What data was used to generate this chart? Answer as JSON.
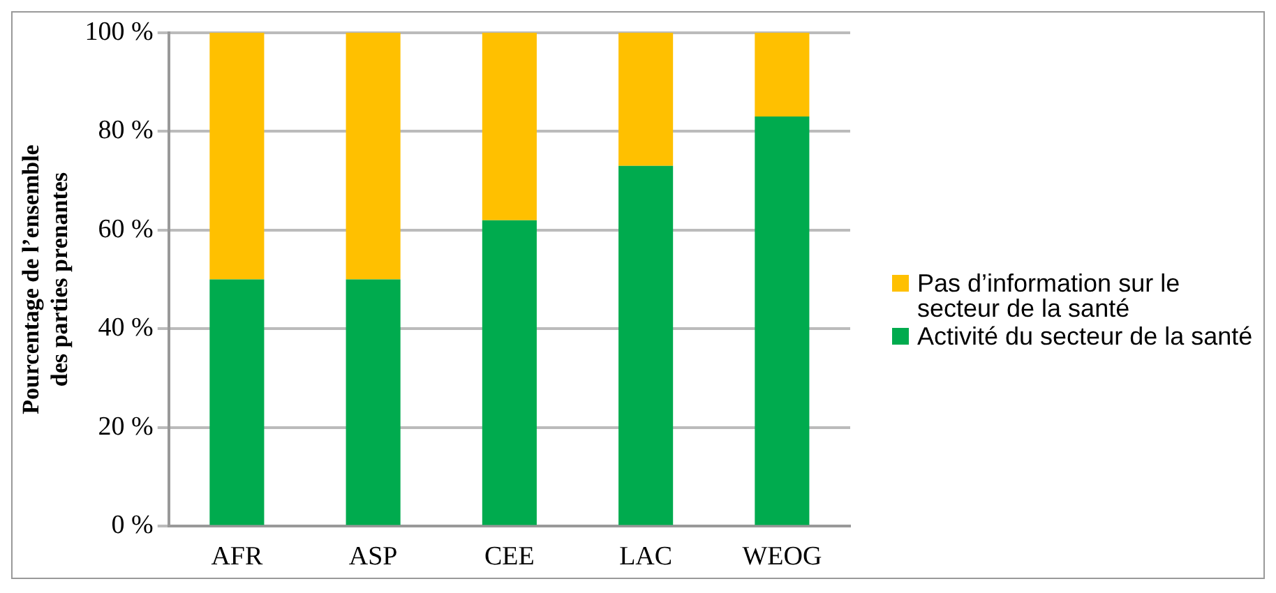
{
  "chart_data": {
    "type": "bar",
    "stacked": true,
    "ylabel": "Pourcentage de l’ensemble des parties prenantes",
    "categories": [
      "AFR",
      "ASP",
      "CEE",
      "LAC",
      "WEOG"
    ],
    "series": [
      {
        "name": "Activité du secteur de la santé",
        "color": "#00ab4e",
        "values": [
          50,
          50,
          62,
          73,
          83
        ]
      },
      {
        "name": "Pas d’information sur le secteur de la santé",
        "color": "#ffc000",
        "values": [
          50,
          50,
          38,
          27,
          17
        ]
      }
    ],
    "ylim": [
      0,
      100
    ],
    "yticks": [
      {
        "value": 0,
        "label": "0 %"
      },
      {
        "value": 20,
        "label": "20 %"
      },
      {
        "value": 40,
        "label": "40 %"
      },
      {
        "value": 60,
        "label": "60 %"
      },
      {
        "value": 80,
        "label": "80 %"
      },
      {
        "value": 100,
        "label": "100 %"
      }
    ],
    "grid": "y",
    "legend": "right"
  }
}
